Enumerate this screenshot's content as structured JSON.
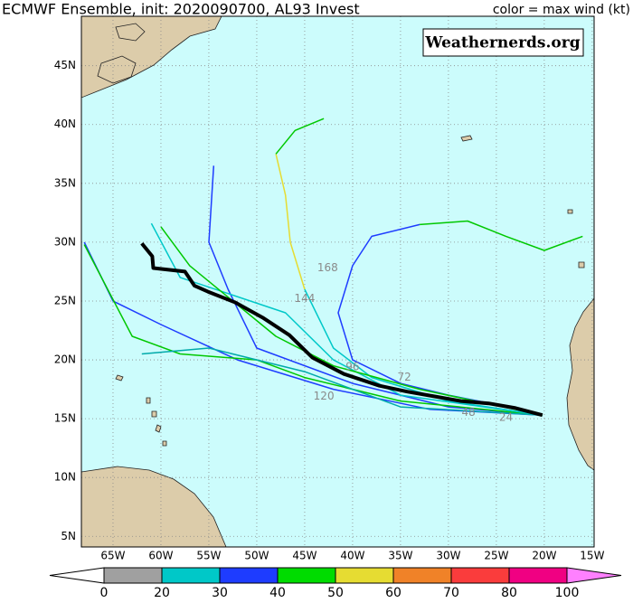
{
  "header": {
    "title": "ECMWF Ensemble, init: 2020090700, AL93 Invest",
    "legend_note": "color = max wind (kt)"
  },
  "watermark": "Weathernerds.org",
  "map": {
    "lon_range": [
      -68.3,
      -14.8
    ],
    "lat_range": [
      4.1,
      49.2
    ],
    "lat_ticks": [
      {
        "value": 5,
        "label": "5N"
      },
      {
        "value": 10,
        "label": "10N"
      },
      {
        "value": 15,
        "label": "15N"
      },
      {
        "value": 20,
        "label": "20N"
      },
      {
        "value": 25,
        "label": "25N"
      },
      {
        "value": 30,
        "label": "30N"
      },
      {
        "value": 35,
        "label": "35N"
      },
      {
        "value": 40,
        "label": "40N"
      },
      {
        "value": 45,
        "label": "45N"
      }
    ],
    "lon_ticks": [
      {
        "value": -65,
        "label": "65W"
      },
      {
        "value": -60,
        "label": "60W"
      },
      {
        "value": -55,
        "label": "55W"
      },
      {
        "value": -50,
        "label": "50W"
      },
      {
        "value": -45,
        "label": "45W"
      },
      {
        "value": -40,
        "label": "40W"
      },
      {
        "value": -35,
        "label": "35W"
      },
      {
        "value": -30,
        "label": "30W"
      },
      {
        "value": -25,
        "label": "25W"
      },
      {
        "value": -20,
        "label": "20W"
      },
      {
        "value": -15,
        "label": "15W"
      }
    ],
    "tracks": [
      {
        "color": "#1e3cff",
        "lon": [
          -20.2,
          -25,
          -30,
          -35,
          -40,
          -41.5,
          -40,
          -38,
          -33
        ],
        "lat": [
          15.3,
          16.2,
          17,
          18,
          20,
          24,
          28,
          30.5,
          31.5
        ]
      },
      {
        "color": "#00c800",
        "lon": [
          -33,
          -28,
          -24,
          -20,
          -16
        ],
        "lat": [
          31.5,
          31.8,
          30.5,
          29.3,
          30.5
        ]
      },
      {
        "color": "#00c8c8",
        "lon": [
          -20.2,
          -30,
          -38,
          -42,
          -45
        ],
        "lat": [
          15.3,
          16.5,
          18.5,
          21,
          26
        ]
      },
      {
        "color": "#e6dc32",
        "lon": [
          -45,
          -46.5,
          -47,
          -48
        ],
        "lat": [
          26,
          30,
          34,
          37.5
        ]
      },
      {
        "color": "#00c800",
        "lon": [
          -48,
          -46,
          -43
        ],
        "lat": [
          37.5,
          39.5,
          40.5
        ]
      },
      {
        "color": "#1e3cff",
        "lon": [
          -20.2,
          -30,
          -40,
          -50,
          -53,
          -55,
          -54.5
        ],
        "lat": [
          15.3,
          16,
          18,
          21,
          26,
          30,
          36.5
        ]
      },
      {
        "color": "#1e3cff",
        "lon": [
          -20.2,
          -32,
          -42,
          -52,
          -60,
          -65,
          -68
        ],
        "lat": [
          15.3,
          15.8,
          17.5,
          20,
          23,
          25,
          30
        ]
      },
      {
        "color": "#00c800",
        "lon": [
          -20.2,
          -35,
          -45,
          -50,
          -58,
          -63,
          -68
        ],
        "lat": [
          15.3,
          16.5,
          18.5,
          20,
          20.5,
          22,
          29.8
        ]
      },
      {
        "color": "#00aaaa",
        "lon": [
          -20.2,
          -35,
          -45,
          -55,
          -62
        ],
        "lat": [
          15.3,
          16,
          19,
          21,
          20.5
        ]
      },
      {
        "color": "#00c8c8",
        "lon": [
          -20.2,
          -35,
          -42,
          -47,
          -58,
          -61
        ],
        "lat": [
          15.3,
          17,
          20,
          24,
          27,
          31.6
        ]
      },
      {
        "color": "#00c800",
        "lon": [
          -20.2,
          -33,
          -42,
          -48,
          -57,
          -60
        ],
        "lat": [
          15.3,
          17.5,
          19.5,
          22,
          28,
          31.3
        ]
      },
      {
        "color": "#000000",
        "lon": [
          -62.0,
          -60.9,
          -60.8,
          -57.5,
          -56.5,
          -55.1,
          -52.3,
          -49.4,
          -46.6,
          -44.2,
          -40.9,
          -37.2,
          -34.3,
          -31.5,
          -28.7,
          -25.8,
          -23.0,
          -20.2
        ],
        "lat": [
          29.9,
          28.8,
          27.8,
          27.5,
          26.3,
          25.8,
          24.9,
          23.6,
          22.1,
          20.2,
          18.8,
          17.8,
          17.3,
          16.9,
          16.5,
          16.3,
          15.9,
          15.3
        ]
      }
    ],
    "hour_labels": [
      {
        "label": "168",
        "lon": -42.6,
        "lat": 27.8
      },
      {
        "label": "144",
        "lon": -45.0,
        "lat": 25.2
      },
      {
        "label": "120",
        "lon": -43.0,
        "lat": 16.9
      },
      {
        "label": "96",
        "lon": -40.0,
        "lat": 19.4
      },
      {
        "label": "72",
        "lon": -34.6,
        "lat": 18.5
      },
      {
        "label": "48",
        "lon": -27.9,
        "lat": 15.5
      },
      {
        "label": "24",
        "lon": -24.0,
        "lat": 15.1
      }
    ]
  },
  "colorbar": {
    "ticks": [
      0,
      20,
      30,
      40,
      50,
      60,
      70,
      80,
      100
    ],
    "colors": [
      "#a0a0a0",
      "#00c8c8",
      "#1e3cff",
      "#00dc00",
      "#e6dc32",
      "#f08228",
      "#fa3c3c",
      "#f00082"
    ],
    "under_color": "#ffffff",
    "over_color": "#ff80ff"
  }
}
